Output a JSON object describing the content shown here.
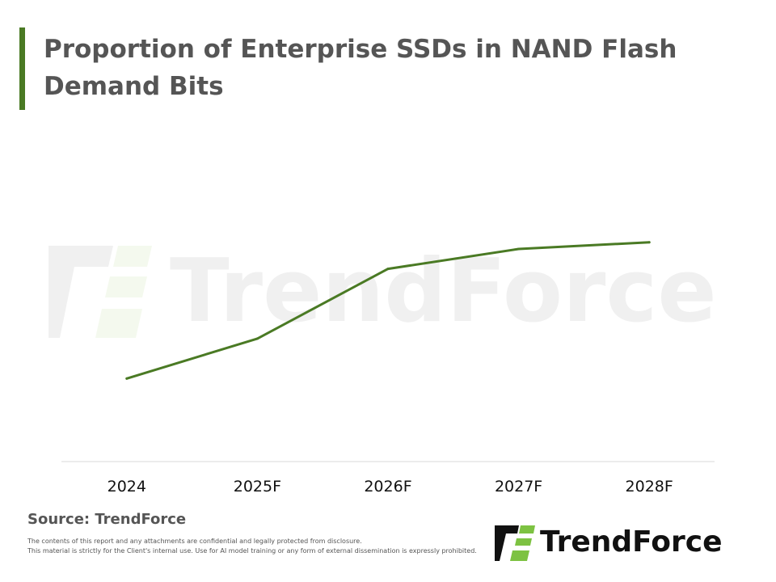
{
  "header": {
    "title": "Proportion of Enterprise SSDs in NAND Flash Demand Bits"
  },
  "watermark": {
    "text": "TrendForce"
  },
  "chart_data": {
    "type": "line",
    "title": "Proportion of Enterprise SSDs in NAND Flash Demand Bits",
    "xlabel": "",
    "ylabel": "",
    "categories": [
      "2024",
      "2025F",
      "2026F",
      "2027F",
      "2028F"
    ],
    "series": [
      {
        "values": [
          25,
          37,
          58,
          64,
          66
        ],
        "color": "#4a7a24"
      }
    ],
    "ylim": [
      0,
      100
    ],
    "grid": false,
    "y_axis_visible": false,
    "note": "Y-axis values are not labeled in the image; values are relative estimates read from line position."
  },
  "footer": {
    "source": "Source: TrendForce",
    "disclaimer_line1": "The contents of this report and any attachments are confidential and legally protected from disclosure.",
    "disclaimer_line2": "This material is strictly for the Client's internal use. Use for AI model training or any form of external dissemination is expressly prohibited.",
    "logo_text": "TrendForce"
  },
  "colors": {
    "accent": "#4a7a24",
    "logo_green": "#7dc242",
    "title_text": "#555555",
    "watermark": "#f0f0f0"
  }
}
